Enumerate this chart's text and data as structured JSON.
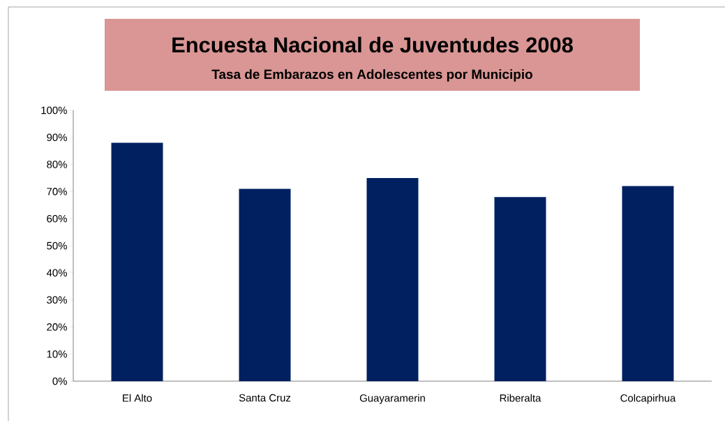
{
  "chart_data": {
    "type": "bar",
    "title": "Encuesta Nacional de Juventudes 2008",
    "subtitle": "Tasa de Embarazos en Adolescentes por Municipio",
    "categories": [
      "El Alto",
      "Santa Cruz",
      "Guayaramerin",
      "Riberalta",
      "Colcapirhua"
    ],
    "values": [
      88,
      71,
      75,
      68,
      72
    ],
    "color": "#002060",
    "ylim": [
      0,
      100
    ],
    "yticks": [
      {
        "value": 0,
        "label": "0%"
      },
      {
        "value": 10,
        "label": "10%"
      },
      {
        "value": 20,
        "label": "20%"
      },
      {
        "value": 30,
        "label": "30%"
      },
      {
        "value": 40,
        "label": "40%"
      },
      {
        "value": 50,
        "label": "50%"
      },
      {
        "value": 60,
        "label": "60%"
      },
      {
        "value": 70,
        "label": "70%"
      },
      {
        "value": 80,
        "label": "80%"
      },
      {
        "value": 90,
        "label": "90%"
      },
      {
        "value": 100,
        "label": "100%"
      }
    ],
    "grid": false
  }
}
